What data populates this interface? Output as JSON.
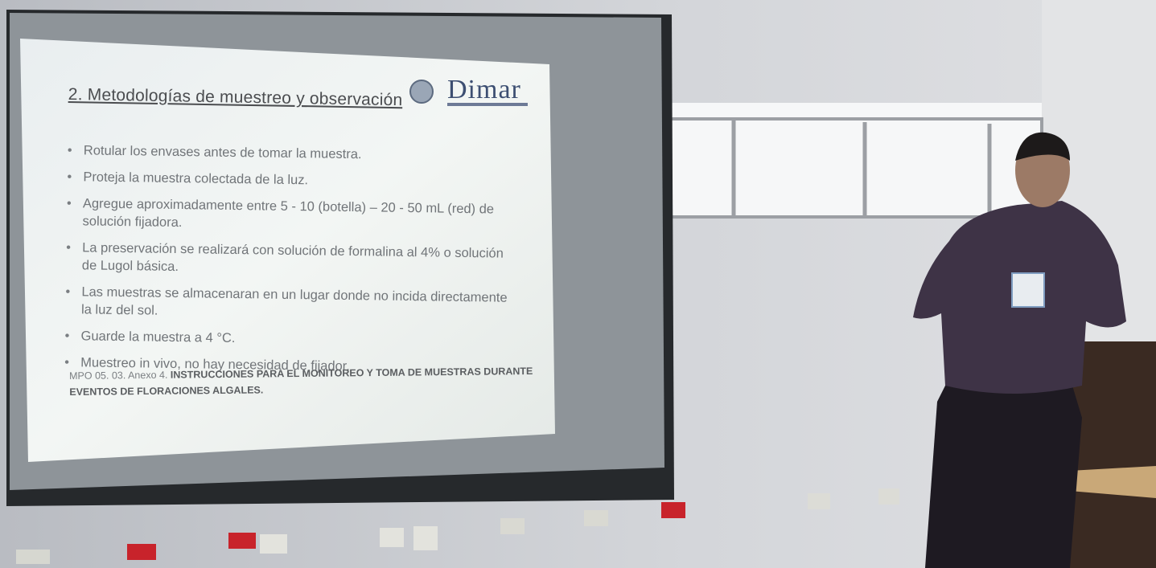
{
  "slide": {
    "title": "2. Metodologías de muestreo y observación",
    "logo": "Dimar",
    "bullets": [
      "Rotular los envases antes de tomar la muestra.",
      "Proteja la muestra colectada de la luz.",
      "Agregue aproximadamente entre 5 - 10 (botella) – 20 - 50 mL (red) de solución fijadora.",
      "La preservación se realizará con solución de formalina al 4% o solución de Lugol básica.",
      "Las muestras se almacenaran en un lugar donde no incida directamente la luz del sol.",
      "Guarde la muestra a 4 °C.",
      "Muestreo in vivo, no hay necesidad de fijador."
    ],
    "reference": {
      "code": "MPO 05. 03. Anexo 4.",
      "title": "INSTRUCCIONES PARA EL MONITOREO Y TOMA DE MUESTRAS DURANTE EVENTOS DE FLORACIONES ALGALES."
    }
  }
}
